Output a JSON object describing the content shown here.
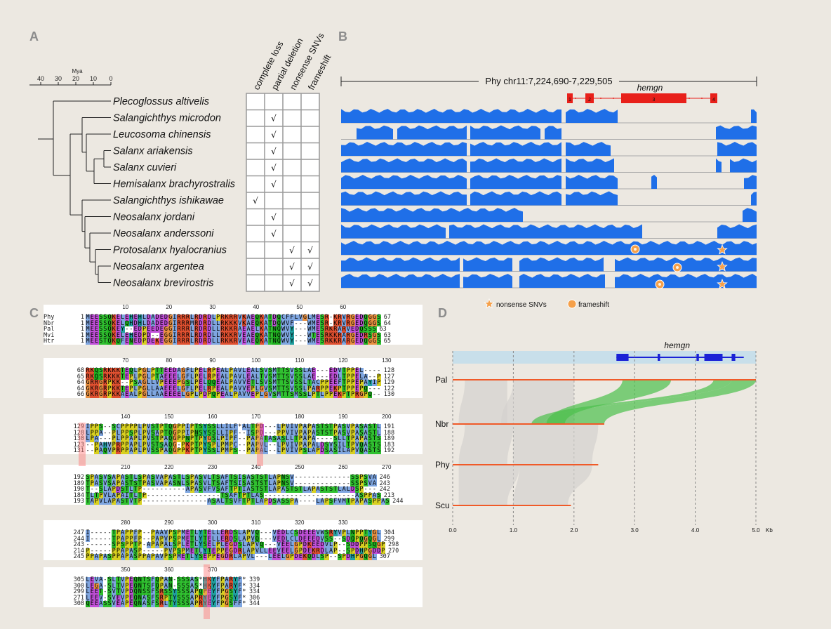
{
  "panels": {
    "a": "A",
    "b": "B",
    "c": "C",
    "d": "D"
  },
  "panelA": {
    "axis_label": "Mya",
    "ticks": [
      "40",
      "30",
      "20",
      "10",
      "0"
    ],
    "columns": [
      "complete loss",
      "partial deletion",
      "nonsense SNVs",
      "frameshift"
    ],
    "check": "√",
    "species": [
      {
        "name": "Plecoglossus altivelis",
        "marks": [
          false,
          false,
          false,
          false
        ]
      },
      {
        "name": "Salangichthys microdon",
        "marks": [
          false,
          true,
          false,
          false
        ]
      },
      {
        "name": "Leucosoma chinensis",
        "marks": [
          false,
          true,
          false,
          false
        ]
      },
      {
        "name": "Salanx ariakensis",
        "marks": [
          false,
          true,
          false,
          false
        ]
      },
      {
        "name": "Salanx cuvieri",
        "marks": [
          false,
          true,
          false,
          false
        ]
      },
      {
        "name": "Hemisalanx brachyrostralis",
        "marks": [
          false,
          true,
          false,
          false
        ]
      },
      {
        "name": "Salangichthys ishikawae",
        "marks": [
          true,
          false,
          false,
          false
        ]
      },
      {
        "name": "Neosalanx jordani",
        "marks": [
          false,
          true,
          false,
          false
        ]
      },
      {
        "name": "Neosalanx anderssoni",
        "marks": [
          false,
          true,
          false,
          false
        ]
      },
      {
        "name": "Protosalanx hyalocranius",
        "marks": [
          false,
          false,
          true,
          true
        ]
      },
      {
        "name": "Neosalanx argentea",
        "marks": [
          false,
          false,
          true,
          true
        ]
      },
      {
        "name": "Neosalanx brevirostris",
        "marks": [
          false,
          false,
          true,
          true
        ]
      }
    ]
  },
  "panelB": {
    "region": "Phy chr11:7,224,690-7,229,505",
    "gene": "hemgn",
    "exons": [
      "1",
      "2",
      "3",
      "4"
    ],
    "legend": {
      "nonsense": "nonsense SNVs",
      "frameshift": "frameshift"
    },
    "colors": {
      "coverage": "#1f6fe8",
      "gene": "#e8201a",
      "star": "#f5a04a"
    }
  },
  "panelC": {
    "blocks": [
      {
        "ruler": [
          "10",
          "20",
          "30",
          "40",
          "50",
          "60"
        ],
        "rows": [
          {
            "name": "Phy",
            "start": "1",
            "seq": "MEESSQKELEHEHLDADEDGIRRRLRDRDLPRKRRVKAEQKATDQCFFLVGLMESR-KRVRGEDQGGS",
            "end": "67"
          },
          {
            "name": "Nbr",
            "start": "1",
            "seq": "MEESSQKELQHDHLDADEDGIRRRMRDRDLLRKKKVKAEQKATDQWVF---WMESR-KRVRGEDQGGS",
            "end": "64"
          },
          {
            "name": "Pal",
            "start": "1",
            "seq": "MEESSQKEY--EDPEEDEGGIRRRLRDRDLLRKKRAEAELKATNQWVY---WMESRKRARVEDQSSS",
            "end": "63"
          },
          {
            "name": "Mvi",
            "start": "1",
            "seq": "MEESSQKELEHEDPD--EGGIRRRLRDRDLLRKKRVEAEQKATNQWVY---WTESRKKRARGEDRSGS",
            "end": "63"
          },
          {
            "name": "Htr",
            "start": "1",
            "seq": "MEESTQKQFENEDPDEKEGGIRRRLRDRDLLRKKRVEAEQKATNQWVY---WMESRKKRARGEDQGGS",
            "end": "65"
          }
        ]
      },
      {
        "ruler": [
          "70",
          "80",
          "90",
          "100",
          "110",
          "120",
          "130"
        ],
        "rows": [
          {
            "name": "",
            "start": "68",
            "seq": "RKQSRKKKTEQLPGLPTTEEDAGFLPELRPEALPAVLEALSVSMTTSVSSLAE---EDVTPPEL----",
            "end": "128"
          },
          {
            "name": "",
            "start": "65",
            "seq": "RKQSRKKKTEPLPGLPTAEEELGFLPELRPEALPAVLEALTVSMTTSVSSLAE---EDLTPPELA--P",
            "end": "127"
          },
          {
            "name": "",
            "start": "64",
            "seq": "GRRGRPKK--PSAGLLVPEEEPGSLPELQQEALPAVVETLSVSMTTSVSSLTACPPEEFTPPEPAYIP",
            "end": "129"
          },
          {
            "name": "",
            "start": "64",
            "seq": "GKRGRPKKTEPLPGLLAAEEELGFLPELRPEALPAVVEPLGVSMTTSVSSLPARPPEKPTPPEPQ---",
            "end": "122"
          },
          {
            "name": "",
            "start": "66",
            "seq": "GKRGRPKKAEALPGLLAAEEEELGPLPDPQPEALPAVVEPLGVSMTTSMSSLPTLPPEKPTPRGPQ--",
            "end": "130"
          }
        ]
      },
      {
        "ruler": [
          "140",
          "150",
          "160",
          "170",
          "180",
          "190",
          "200"
        ],
        "rows": [
          {
            "name": "",
            "start": "129",
            "seq": "IPPS--SCPPPPLPVSTPTQGPPIPTSYSSLLILF*ALTPD---LPVIVPAPASTSTPASVPASASTL",
            "end": "191"
          },
          {
            "name": "",
            "start": "128",
            "seq": "LPPA--PLPPSPLPVSAPTQGPPIPNSYSSLLIPF--ISPD---PPVIVPAPASTSTPASVPASASTL",
            "end": "188"
          },
          {
            "name": "",
            "start": "130",
            "seq": "LPA---PLPPAPLPVSTPAQGPPNPTPYGSLPIPF--PAPATASASLLTPAPA----SLLTPAPASTS",
            "end": "189"
          },
          {
            "name": "",
            "start": "123",
            "seq": "--PAHVPRPPAPLPVSTSAQG-PKPTPYSPLPMPC--PAPVL--LPVIVPAPALDSVSILTPVQASTS",
            "end": "183"
          },
          {
            "name": "",
            "start": "131",
            "seq": "--PAQVPRPPAPLPVSSPAQGPPKPTPYSSLPMPS--PAPAL--LPVIVPSLAPDSASILAPVQASTS",
            "end": "192"
          }
        ]
      },
      {
        "ruler": [
          "210",
          "220",
          "230",
          "240",
          "250",
          "260",
          "270"
        ],
        "rows": [
          {
            "name": "",
            "start": "192",
            "seq": "SPASVSAPASTLSPASVAPASTLSPASVLTSAFTSISASTSTLAPNSV-------------SSPSVA",
            "end": "246"
          },
          {
            "name": "",
            "start": "189",
            "seq": "TPASVSAPASTSTPASVAPASNLSPASVLTSAFTSISASTSTLAPNSV-------------SSPSVA",
            "end": "243"
          },
          {
            "name": "",
            "start": "190",
            "seq": "T--SLAPDSTLTP----------APASVFVSAFTPTIASTSTLAPASTSTLAPASTSTLALDSP---",
            "end": "242"
          },
          {
            "name": "",
            "start": "184",
            "seq": "TLTPVLAPAITLTP-----------------TSAFTPTLAS---------------------ASPPAS",
            "end": "213"
          },
          {
            "name": "",
            "start": "193",
            "seq": "TAPVLAPASTVTP---------------ASALTSVFTPTLAPDSASSPA----LAPSFVMTPAPASPPAS",
            "end": "244"
          }
        ]
      },
      {
        "ruler": [
          "280",
          "290",
          "300",
          "310",
          "320",
          "330"
        ],
        "rows": [
          {
            "name": "",
            "start": "247",
            "seq": "I-----TPAPPFP--PAAVPSPMETLYTELLERDSLAPVQ---VEDLCSDEEEVWSRYVPLNPPTYGL",
            "end": "304"
          },
          {
            "name": "",
            "start": "244",
            "seq": "I-----TPAPPFP--PAPVPSPMETLYTELLERDSLAPVQ---VEDLCLDEEEDVSS--SDQPQGQGL",
            "end": "299"
          },
          {
            "name": "",
            "start": "243",
            "seq": "------SPSPPTP-APAPALSPLETLYSELPLEGDSLAPVQ---VEELGPDKEEDVLP--SDDPPSQGP",
            "end": "298"
          },
          {
            "name": "",
            "start": "214",
            "seq": "P-----PPAPASP-----PVPSPMETLYTEPPEGDRLAPVLLEEVEELGPDEKRDLAP--SPDHPGDDP",
            "end": "270"
          },
          {
            "name": "",
            "start": "245",
            "seq": "PPAPASPPAPASPPAPAVPSPMETLYSEPPEGDRLAPVL---LEELGPDEKQDLSP--SPDHPGQGL",
            "end": "307"
          }
        ]
      },
      {
        "ruler": [
          "350",
          "360",
          "370"
        ],
        "rows": [
          {
            "name": "",
            "start": "305",
            "seq": "LEVA-SLTVPEQNTSFQPAN-SSSAS*HKYFPARYF*",
            "end": "339"
          },
          {
            "name": "",
            "start": "300",
            "seq": "LEGA-SLTVPEQNTSFQPAN-SSSAS*HKYFPARYF*",
            "end": "334"
          },
          {
            "name": "",
            "start": "299",
            "seq": "LEET-SVTVPDQNSSFSRSSYSSSAPQPEYFPGSYF*",
            "end": "334"
          },
          {
            "name": "",
            "start": "271",
            "seq": "LEEV-SVEVPEQNASFSRPTYSSSAPRYEYFPGSYF*",
            "end": "306"
          },
          {
            "name": "",
            "start": "308",
            "seq": "QEEASSVEAPEQNASFSRLTYSSSAPRYEYFPGSFF*",
            "end": "344"
          }
        ]
      }
    ]
  },
  "panelD": {
    "gene": "hemgn",
    "tracks": [
      "Pal",
      "Nbr",
      "Phy",
      "Scu"
    ],
    "xticks": [
      "0.0",
      "1.0",
      "2.0",
      "3.0",
      "4.0",
      "5.0"
    ],
    "unit": "Kb",
    "colors": {
      "track": "#f05a28",
      "synteny": "#4cc14c",
      "gene": "#1a22d6"
    }
  }
}
